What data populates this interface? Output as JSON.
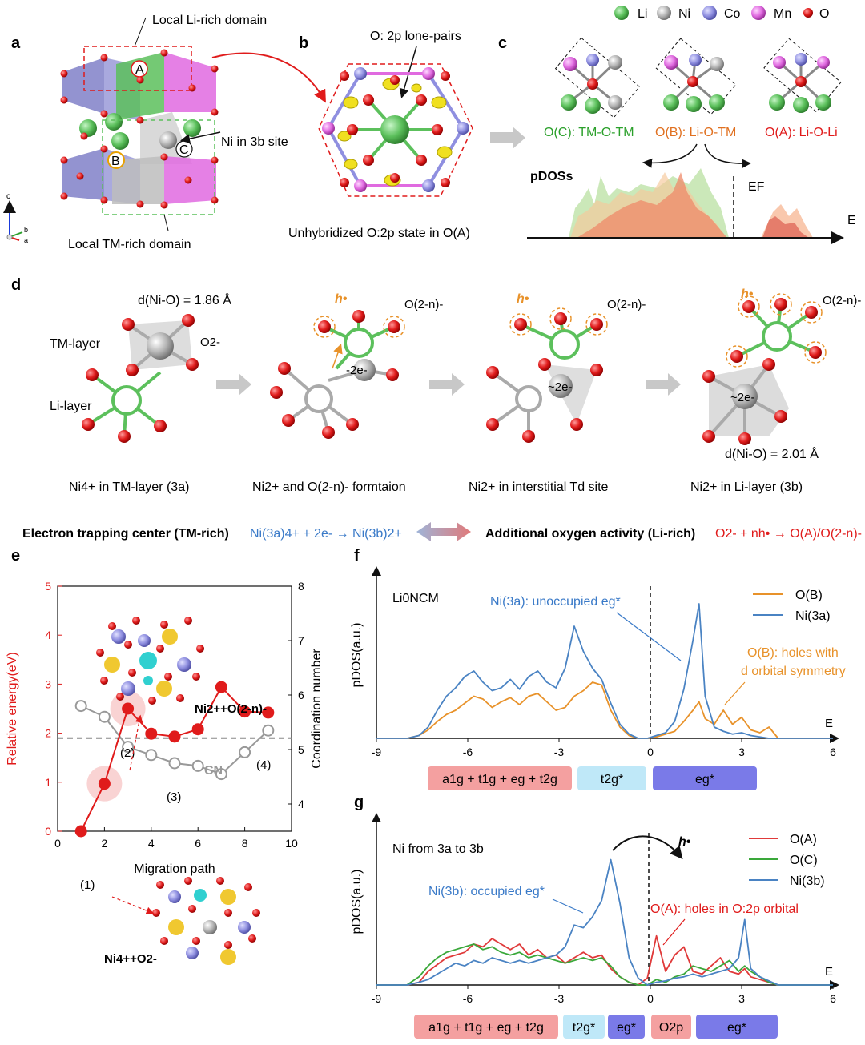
{
  "panel_labels": {
    "a": "a",
    "b": "b",
    "c": "c",
    "d": "d",
    "e": "e",
    "f": "f",
    "g": "g"
  },
  "legend_top": {
    "items": [
      {
        "label": "Li",
        "color": "#5cc05c"
      },
      {
        "label": "Ni",
        "color": "#b5b5b5"
      },
      {
        "label": "Co",
        "color": "#8f8fe0"
      },
      {
        "label": "Mn",
        "color": "#e06ae0"
      },
      {
        "label": "O",
        "color": "#e01b1b"
      }
    ]
  },
  "panel_a": {
    "li_rich": "Local Li-rich domain",
    "tm_rich": "Local TM-rich domain",
    "ni3b": "Ni in 3b site",
    "site_A": "A",
    "site_B": "B",
    "site_C": "C",
    "axis_c": "c",
    "axis_b": "b",
    "axis_a": "a"
  },
  "panel_b": {
    "lone_pairs": "O: 2p lone-pairs",
    "caption": "Unhybridized O:2p state in O(A)"
  },
  "panel_c": {
    "oc": "O(C): TM-O-TM",
    "ob": "O(B): Li-O-TM",
    "oa": "O(A): Li-O-Li",
    "pdos": "pDOSs",
    "ef": "EF",
    "e": "E"
  },
  "panel_d": {
    "dnio_top": "d(Ni-O) = 1.86 Å",
    "dnio_bot": "d(Ni-O) = 2.01 Å",
    "tm_layer": "TM-layer",
    "li_layer": "Li-layer",
    "o2minus": "O2-",
    "o2n": "O(2-n)-",
    "hole": "h•",
    "two_e": "-2e-",
    "approx_two_e": "~2e-",
    "steps": [
      "Ni4+ in TM-layer (3a)",
      "Ni2+ and O(2-n)- formtaion",
      "Ni2+ in interstitial Td site",
      "Ni2+ in Li-layer (3b)"
    ],
    "electron_trap": "Electron trapping center (TM-rich)",
    "electron_eq": "Ni(3a)4+ + 2e- → Ni(3b)2+",
    "oxygen_act": "Additional oxygen activity (Li-rich)",
    "oxygen_eq": "O2- + nh• → O(A)/O(2-n)-"
  },
  "panel_e": {
    "ylabel_left": "Relative energy(eV)",
    "ylabel_right": "Coordination number",
    "xlabel": "Migration path",
    "cn_label": "CN",
    "annotations": [
      "(1)",
      "(2)",
      "(3)",
      "(4)"
    ],
    "inset_top": "Ni2++O(2-n)-",
    "inset_bot": "Ni4++O2-"
  },
  "panel_f": {
    "title": "Li0NCM",
    "ylabel": "pDOS(a.u.)",
    "xlabel": "E",
    "legend": [
      "O(B)",
      "Ni(3a)"
    ],
    "ann_ni": "Ni(3a): unoccupied eg*",
    "ann_ob1": "O(B): holes with",
    "ann_ob2": "d orbital symmetry",
    "bands": [
      "a1g + t1g + eg + t2g",
      "t2g*",
      "eg*"
    ]
  },
  "panel_g": {
    "title": "Ni from 3a to 3b",
    "ylabel": "pDOS(a.u.)",
    "xlabel": "E",
    "legend": [
      "O(A)",
      "O(C)",
      "Ni(3b)"
    ],
    "ann_ni": "Ni(3b): occupied eg*",
    "ann_oa": "O(A): holes in O:2p orbital",
    "hole": "h•",
    "bands": [
      "a1g + t1g + eg + t2g",
      "t2g*",
      "eg*",
      "O2p",
      "eg*"
    ]
  },
  "chart_data": [
    {
      "type": "line",
      "title": "",
      "xlabel": "Migration path",
      "ylabel": "Relative energy(eV)",
      "y2label": "Coordination number",
      "xlim": [
        0,
        10
      ],
      "ylim": [
        0,
        5
      ],
      "y2lim": [
        3.5,
        8
      ],
      "xticks": [
        0,
        2,
        4,
        6,
        8,
        10
      ],
      "yticks": [
        0,
        1,
        2,
        3,
        4,
        5
      ],
      "y2ticks": [
        4,
        5,
        6,
        7,
        8
      ],
      "series": [
        {
          "name": "Relative energy",
          "color": "#e01b1b",
          "axis": "left",
          "x": [
            1,
            2,
            3,
            4,
            5,
            6,
            7,
            8,
            9
          ],
          "values": [
            0.0,
            0.97,
            2.5,
            1.99,
            1.93,
            2.08,
            2.94,
            2.44,
            2.42
          ]
        },
        {
          "name": "CN",
          "color": "#999999",
          "axis": "right",
          "x": [
            1,
            2,
            3,
            4,
            5,
            6,
            7,
            8,
            9
          ],
          "values": [
            5.8,
            5.6,
            5.05,
            4.9,
            4.75,
            4.7,
            4.55,
            4.95,
            5.35
          ]
        }
      ],
      "reference_line": {
        "label": "CN",
        "value_left": 1.9
      }
    },
    {
      "type": "line",
      "title": "Li0NCM",
      "xlabel": "E",
      "ylabel": "pDOS(a.u.)",
      "xlim": [
        -9,
        6
      ],
      "xticks": [
        -9,
        -6,
        -3,
        0,
        3,
        6
      ],
      "fermi": 0,
      "x": [
        -9,
        -8,
        -7.6,
        -7.3,
        -7,
        -6.7,
        -6.4,
        -6.1,
        -5.8,
        -5.5,
        -5.2,
        -4.9,
        -4.6,
        -4.3,
        -4.0,
        -3.7,
        -3.4,
        -3.1,
        -2.8,
        -2.5,
        -2.2,
        -1.9,
        -1.6,
        -1.3,
        -1.0,
        -0.7,
        -0.4,
        -0.1,
        0.2,
        0.5,
        0.8,
        1.1,
        1.4,
        1.6,
        1.8,
        2.1,
        2.4,
        2.7,
        3.0,
        3.3,
        3.6,
        3.9,
        4.2,
        6
      ],
      "series": [
        {
          "name": "O(B)",
          "color": "#e8922a",
          "values": [
            0,
            0,
            0.02,
            0.06,
            0.12,
            0.17,
            0.2,
            0.25,
            0.3,
            0.28,
            0.22,
            0.26,
            0.29,
            0.24,
            0.3,
            0.32,
            0.26,
            0.2,
            0.22,
            0.3,
            0.34,
            0.4,
            0.38,
            0.2,
            0.08,
            0.02,
            0,
            0,
            0.01,
            0.03,
            0.05,
            0.12,
            0.2,
            0.26,
            0.14,
            0.1,
            0.2,
            0.1,
            0.15,
            0.06,
            0.04,
            0.08,
            0,
            0
          ]
        },
        {
          "name": "Ni(3a)",
          "color": "#4a83c3",
          "values": [
            0,
            0,
            0.02,
            0.08,
            0.2,
            0.3,
            0.36,
            0.44,
            0.48,
            0.4,
            0.34,
            0.36,
            0.42,
            0.35,
            0.44,
            0.48,
            0.4,
            0.36,
            0.5,
            0.8,
            0.62,
            0.5,
            0.42,
            0.25,
            0.1,
            0.03,
            0,
            0,
            0.02,
            0.04,
            0.12,
            0.35,
            0.7,
            0.96,
            0.3,
            0.08,
            0.05,
            0.03,
            0.04,
            0.02,
            0.01,
            0,
            0,
            0
          ]
        }
      ]
    },
    {
      "type": "line",
      "title": "Ni from 3a to 3b",
      "xlabel": "E",
      "ylabel": "pDOS(a.u.)",
      "xlim": [
        -9,
        6
      ],
      "xticks": [
        -9,
        -6,
        -3,
        0,
        3,
        6
      ],
      "fermi": 0,
      "x": [
        -9,
        -8,
        -7.6,
        -7.3,
        -7,
        -6.7,
        -6.4,
        -6.1,
        -5.8,
        -5.5,
        -5.2,
        -4.9,
        -4.6,
        -4.3,
        -4.0,
        -3.7,
        -3.4,
        -3.1,
        -2.8,
        -2.5,
        -2.2,
        -1.9,
        -1.6,
        -1.3,
        -1.0,
        -0.7,
        -0.4,
        -0.1,
        0.2,
        0.5,
        0.8,
        1.1,
        1.4,
        1.7,
        2.0,
        2.3,
        2.6,
        2.9,
        3.1,
        3.3,
        3.6,
        3.9,
        4.2,
        6
      ],
      "series": [
        {
          "name": "O(A)",
          "color": "#e03a3a",
          "values": [
            0,
            0,
            0.02,
            0.1,
            0.15,
            0.2,
            0.22,
            0.24,
            0.3,
            0.28,
            0.34,
            0.3,
            0.26,
            0.3,
            0.22,
            0.26,
            0.2,
            0.22,
            0.16,
            0.2,
            0.24,
            0.2,
            0.22,
            0.12,
            0.06,
            0.02,
            0,
            0.05,
            0.36,
            0.1,
            0.22,
            0.28,
            0.1,
            0.08,
            0.14,
            0.2,
            0.1,
            0.08,
            0.12,
            0.06,
            0.04,
            0.02,
            0,
            0
          ]
        },
        {
          "name": "O(C)",
          "color": "#3aa83a",
          "values": [
            0,
            0,
            0.06,
            0.14,
            0.2,
            0.24,
            0.26,
            0.28,
            0.3,
            0.26,
            0.28,
            0.24,
            0.22,
            0.24,
            0.2,
            0.22,
            0.2,
            0.18,
            0.16,
            0.18,
            0.2,
            0.18,
            0.2,
            0.14,
            0.06,
            0.02,
            0,
            0,
            0.04,
            0.02,
            0.06,
            0.08,
            0.14,
            0.12,
            0.1,
            0.14,
            0.18,
            0.1,
            0.14,
            0.1,
            0.06,
            0.02,
            0,
            0
          ]
        },
        {
          "name": "Ni(3b)",
          "color": "#4a83c3",
          "values": [
            0,
            0,
            0.02,
            0.04,
            0.08,
            0.12,
            0.16,
            0.14,
            0.18,
            0.16,
            0.2,
            0.18,
            0.16,
            0.18,
            0.16,
            0.18,
            0.2,
            0.22,
            0.28,
            0.44,
            0.42,
            0.5,
            0.62,
            0.92,
            0.6,
            0.2,
            0.05,
            0,
            0.02,
            0.03,
            0.05,
            0.06,
            0.08,
            0.06,
            0.08,
            0.1,
            0.12,
            0.2,
            0.48,
            0.12,
            0.06,
            0.03,
            0,
            0
          ]
        }
      ]
    }
  ]
}
